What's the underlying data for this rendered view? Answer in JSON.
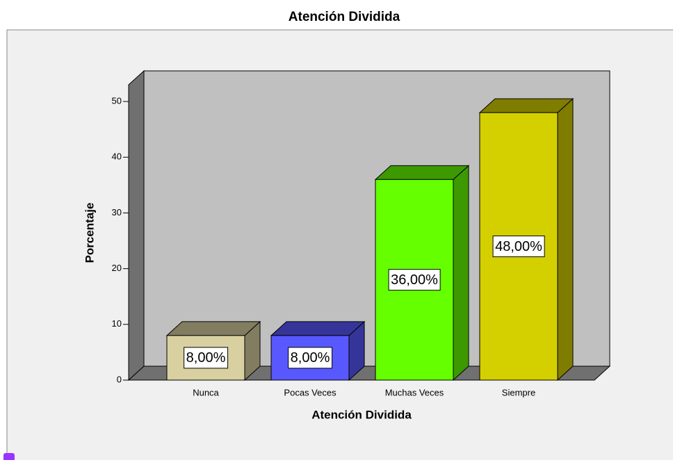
{
  "chart_data": {
    "type": "bar3d",
    "title": "Atención Dividida",
    "x_label": "Atención Dividida",
    "y_label": "Porcentaje",
    "categories": [
      "Nunca",
      "Pocas Veces",
      "Muchas Veces",
      "Siempre"
    ],
    "values": [
      8,
      8,
      36,
      48
    ],
    "value_labels": [
      "8,00%",
      "8,00%",
      "36,00%",
      "48,00%"
    ],
    "colors": [
      "#d8d0a0",
      "#5858ff",
      "#66ff00",
      "#d4d000"
    ],
    "ylim": [
      0,
      53
    ],
    "yticks": [
      0,
      10,
      20,
      30,
      40,
      50
    ]
  }
}
